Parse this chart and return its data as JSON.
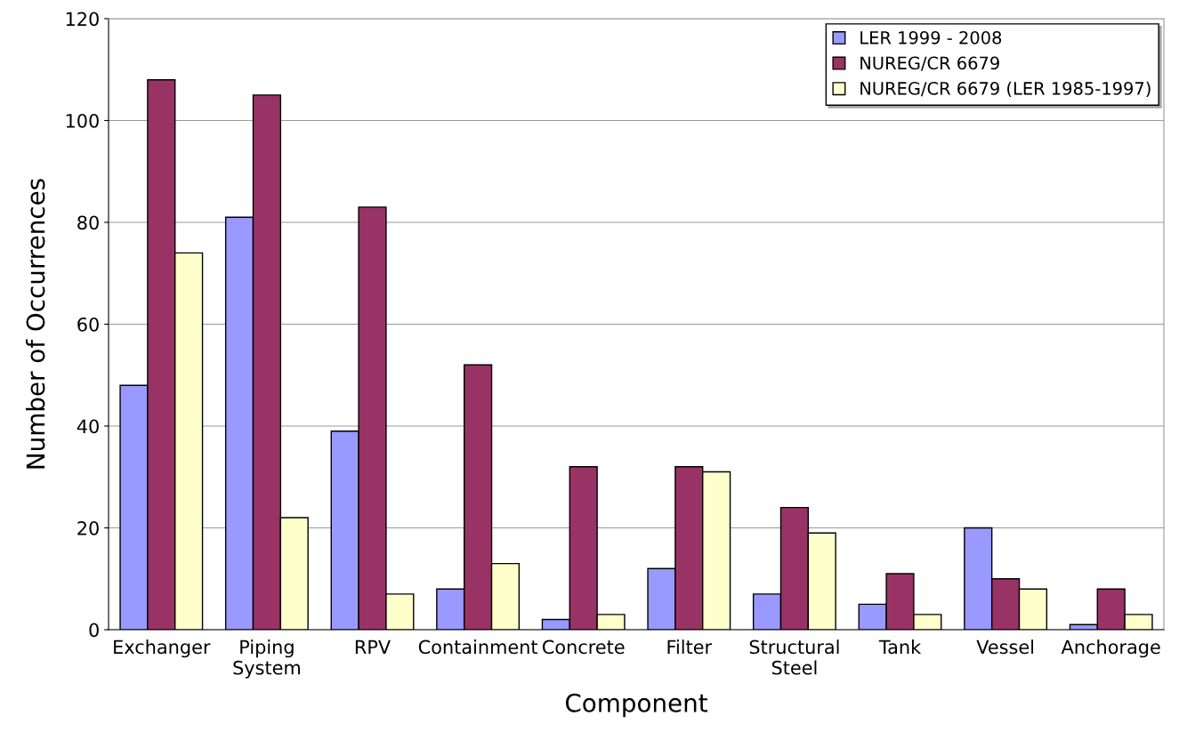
{
  "chart_data": {
    "type": "bar",
    "xlabel": "Component",
    "ylabel": "Number of Occurrences",
    "categories": [
      "Exchanger",
      "Piping\nSystem",
      "RPV",
      "Containment",
      "Concrete",
      "Filter",
      "Structural\nSteel",
      "Tank",
      "Vessel",
      "Anchorage"
    ],
    "series": [
      {
        "name": "LER 1999 - 2008",
        "color": "#9999ff",
        "values": [
          48,
          81,
          39,
          8,
          2,
          12,
          7,
          5,
          20,
          1
        ]
      },
      {
        "name": "NUREG/CR 6679",
        "color": "#993366",
        "values": [
          108,
          105,
          83,
          52,
          32,
          32,
          24,
          11,
          10,
          8
        ]
      },
      {
        "name": "NUREG/CR 6679 (LER 1985-1997)",
        "color": "#ffffcc",
        "values": [
          74,
          22,
          7,
          13,
          3,
          31,
          19,
          3,
          8,
          3
        ]
      }
    ],
    "ylim": [
      0,
      120
    ],
    "yticks": [
      0,
      20,
      40,
      60,
      80,
      100,
      120
    ],
    "grid": "y",
    "legend": "top right"
  }
}
